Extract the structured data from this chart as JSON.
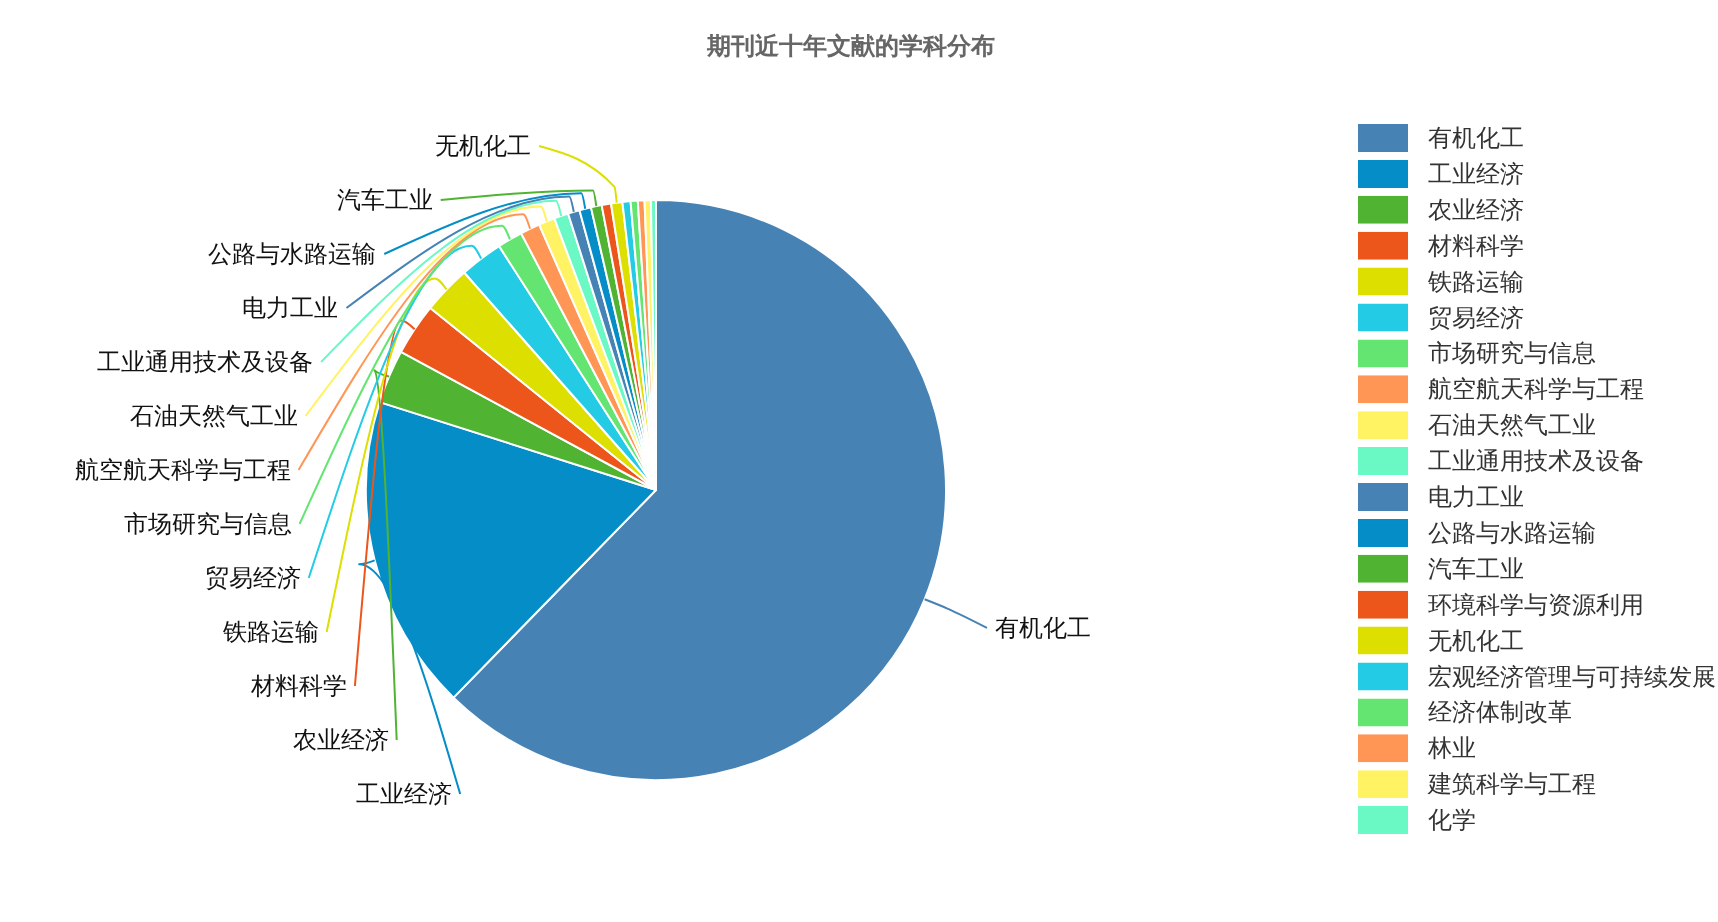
{
  "chart_data": {
    "type": "pie",
    "title": "期刊近十年文献的学科分布",
    "categories": [
      "有机化工",
      "工业经济",
      "农业经济",
      "材料科学",
      "铁路运输",
      "贸易经济",
      "市场研究与信息",
      "航空航天科学与工程",
      "石油天然气工业",
      "工业通用技术及设备",
      "电力工业",
      "公路与水路运输",
      "汽车工业",
      "环境科学与资源利用",
      "无机化工",
      "宏观经济管理与可持续发展",
      "经济体制改革",
      "林业",
      "建筑科学与工程",
      "化学"
    ],
    "values": [
      62.3,
      17.6,
      3.0,
      2.9,
      2.7,
      2.4,
      1.4,
      1.1,
      0.9,
      0.8,
      0.65,
      0.65,
      0.6,
      0.52,
      0.63,
      0.45,
      0.4,
      0.37,
      0.35,
      0.28
    ],
    "colors": [
      "#4682b4",
      "#058dc7",
      "#50b432",
      "#ed561b",
      "#dddf00",
      "#24cbe5",
      "#64e572",
      "#ff9655",
      "#fff263",
      "#6af9c4",
      "#4682b4",
      "#058dc7",
      "#50b432",
      "#ed561b",
      "#dddf00",
      "#24cbe5",
      "#64e572",
      "#ff9655",
      "#fff263",
      "#6af9c4"
    ],
    "legend": "right"
  }
}
